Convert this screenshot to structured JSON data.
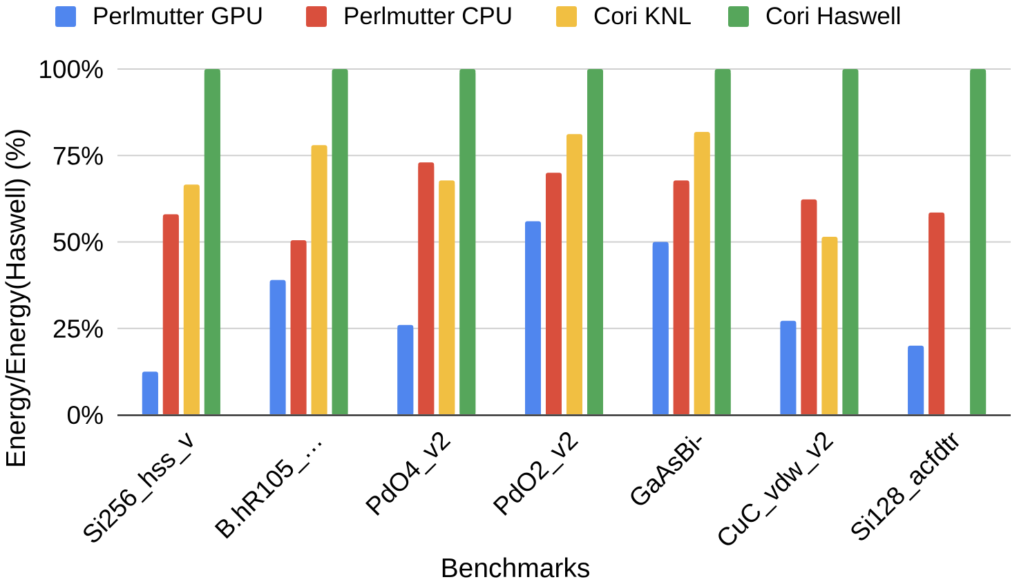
{
  "chart_data": {
    "type": "bar",
    "xlabel": "Benchmarks",
    "ylabel": "Energy/Energy(Haswell) (%)",
    "ylim": [
      0,
      100
    ],
    "yticks": [
      "0%",
      "25%",
      "50%",
      "75%",
      "100%"
    ],
    "grid": true,
    "legend_position": "top",
    "categories": [
      "Si256_hss_v",
      "B.hR105_…",
      "PdO4_v2",
      "PdO2_v2",
      "GaAsBi-",
      "CuC_vdw_v2",
      "Si128_acfdtr"
    ],
    "series": [
      {
        "name": "Perlmutter GPU",
        "color": "#5086ee",
        "values": [
          12.5,
          39,
          26,
          56,
          50,
          27.2,
          20
        ]
      },
      {
        "name": "Perlmutter CPU",
        "color": "#d94f3d",
        "values": [
          58,
          50.5,
          73,
          70,
          67.8,
          62.3,
          58.5
        ]
      },
      {
        "name": "Cori KNL",
        "color": "#f1bf42",
        "values": [
          66.6,
          78,
          67.8,
          81.2,
          81.8,
          51.5,
          null
        ]
      },
      {
        "name": "Cori Haswell",
        "color": "#56a65b",
        "values": [
          100,
          100,
          100,
          100,
          100,
          100,
          100
        ]
      }
    ]
  }
}
